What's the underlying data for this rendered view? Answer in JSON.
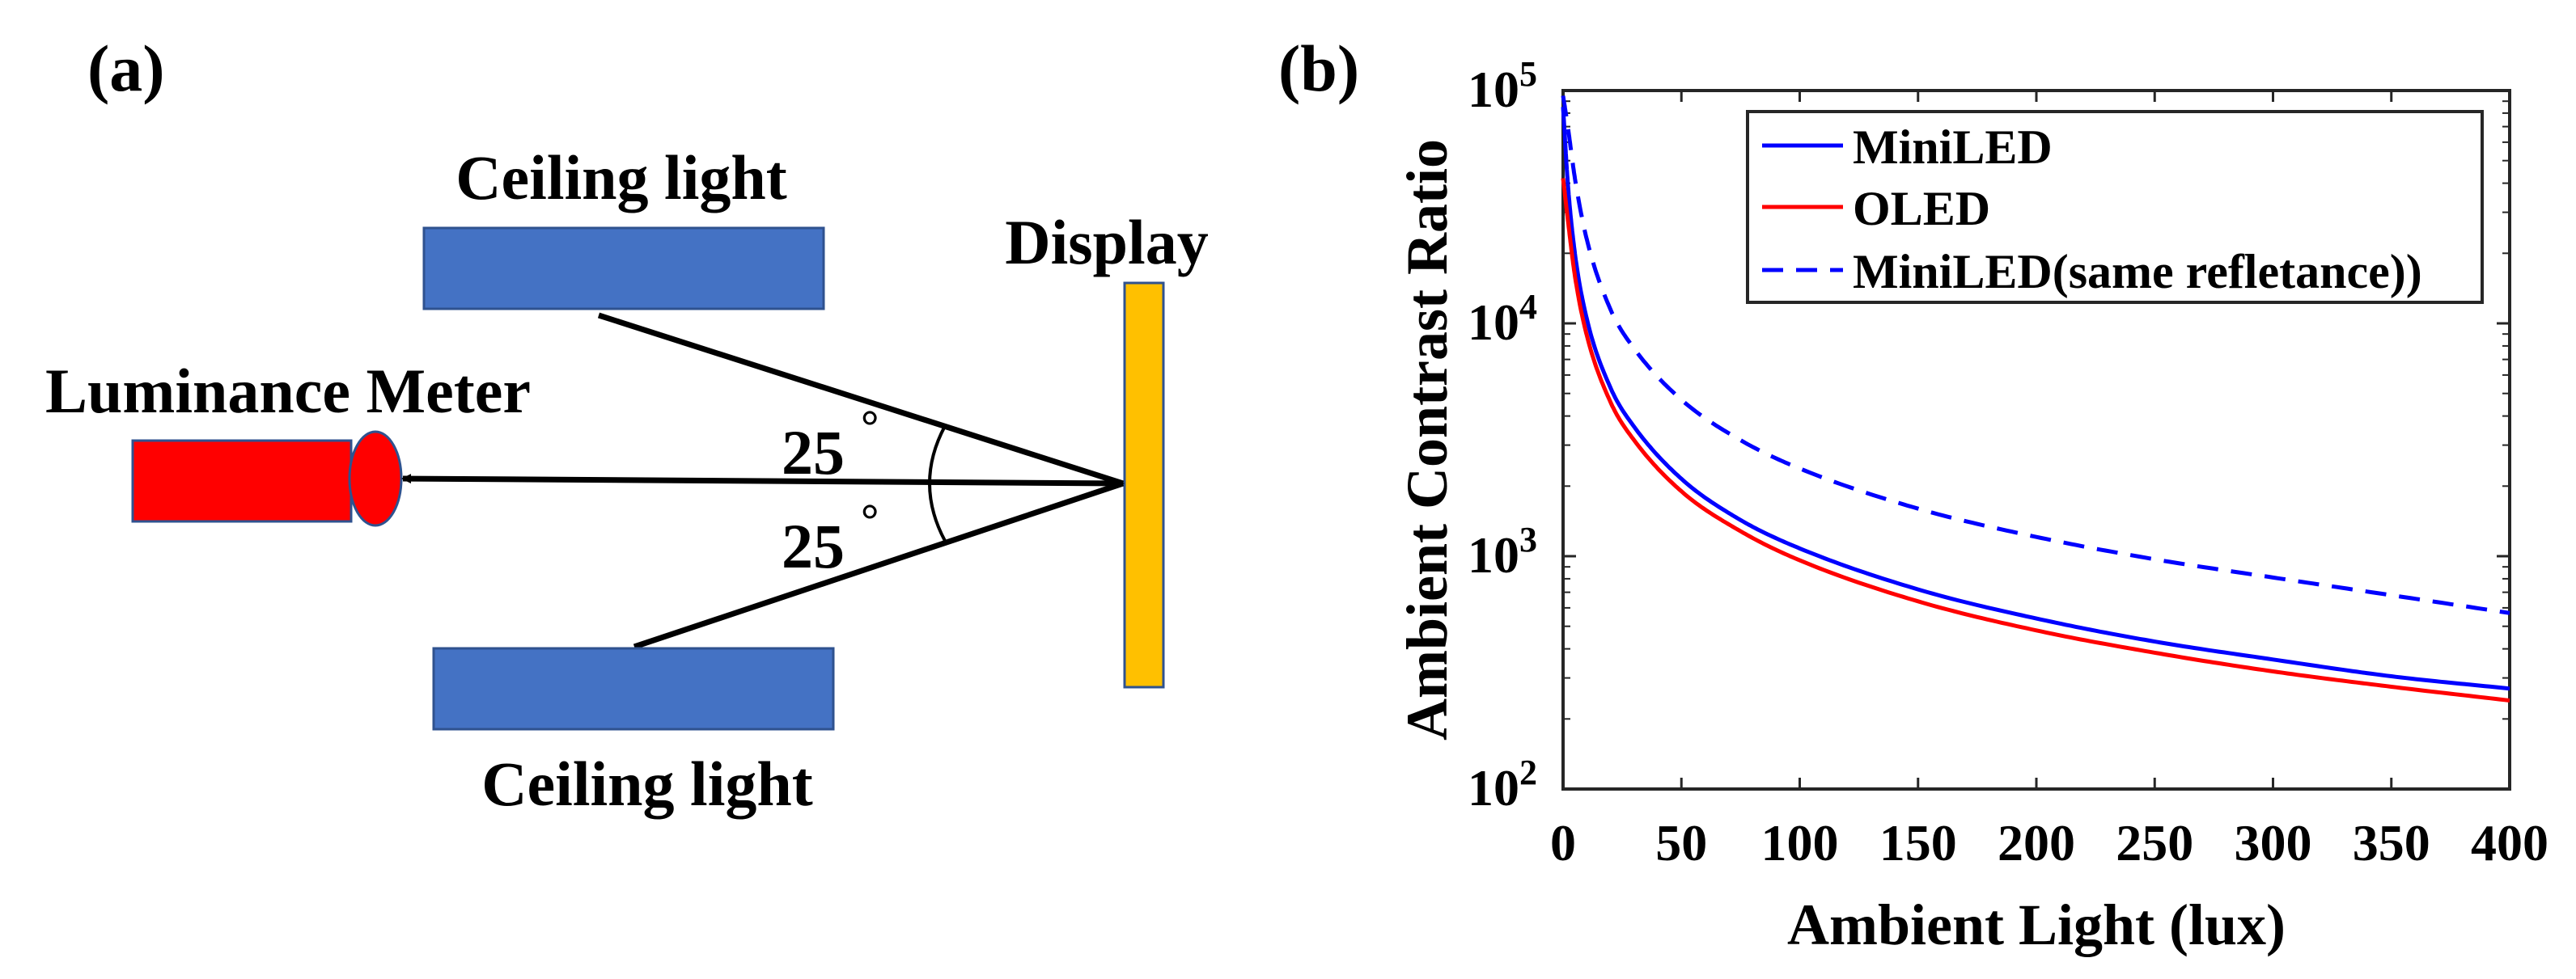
{
  "panel_a": {
    "label": "(a)",
    "ceiling_light_top": "Ceiling light",
    "ceiling_light_bottom": "Ceiling light",
    "display_label": "Display",
    "meter_label": "Luminance Meter",
    "angle_top": "25",
    "angle_bottom": "25",
    "degree_symbol": "°",
    "colors": {
      "ceiling": "#4472C4",
      "meter": "#FF0000",
      "display": "#FFC000"
    }
  },
  "panel_b": {
    "label": "(b)"
  },
  "chart_data": {
    "type": "line",
    "scale_y": "log",
    "title": "",
    "xlabel": "Ambient Light (lux)",
    "ylabel": "Ambient Contrast Ratio",
    "xlim": [
      0,
      400
    ],
    "ylim": [
      100,
      100000
    ],
    "x_ticks": [
      0,
      50,
      100,
      150,
      200,
      250,
      300,
      350,
      400
    ],
    "y_ticks": [
      {
        "base": "10",
        "exp": "2",
        "value": 100
      },
      {
        "base": "10",
        "exp": "3",
        "value": 1000
      },
      {
        "base": "10",
        "exp": "4",
        "value": 10000
      },
      {
        "base": "10",
        "exp": "5",
        "value": 100000
      }
    ],
    "grid": false,
    "legend_position": "top-right",
    "series": [
      {
        "name": "MiniLED",
        "color": "#0000FF",
        "dash": "solid",
        "x": [
          0,
          2,
          5,
          10,
          20,
          30,
          50,
          75,
          100,
          150,
          200,
          250,
          300,
          350,
          400
        ],
        "y": [
          85000,
          40000,
          20000,
          10500,
          5300,
          3600,
          2150,
          1430,
          1080,
          720,
          540,
          430,
          360,
          305,
          270
        ]
      },
      {
        "name": "OLED",
        "color": "#FF0000",
        "dash": "solid",
        "x": [
          0,
          2,
          5,
          10,
          20,
          30,
          50,
          75,
          100,
          150,
          200,
          250,
          300,
          350,
          400
        ],
        "y": [
          42000,
          28000,
          16000,
          8900,
          4600,
          3150,
          1900,
          1280,
          960,
          640,
          480,
          385,
          320,
          275,
          240
        ]
      },
      {
        "name": "MiniLED(same refletance))",
        "color": "#0000FF",
        "dash": "dashed",
        "x": [
          0,
          2,
          5,
          10,
          20,
          30,
          50,
          75,
          100,
          150,
          200,
          250,
          300,
          350,
          400
        ],
        "y": [
          95000,
          70000,
          42000,
          23000,
          11500,
          7800,
          4700,
          3150,
          2380,
          1600,
          1210,
          970,
          810,
          680,
          570
        ]
      }
    ]
  }
}
